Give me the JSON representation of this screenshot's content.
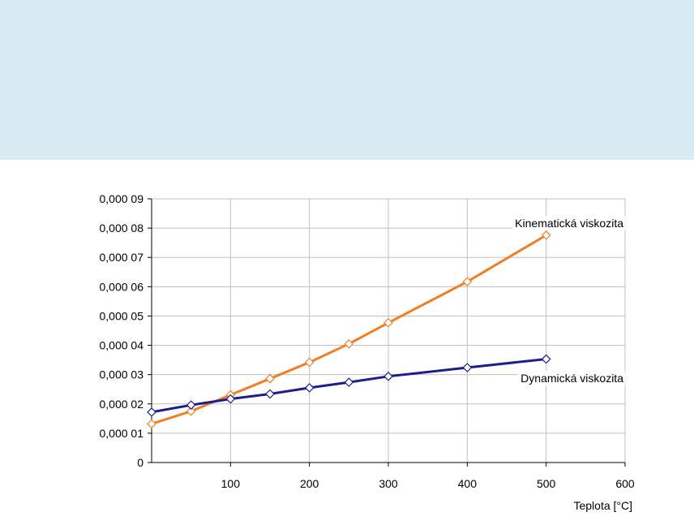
{
  "colors": {
    "header_band": "#d9ecf3",
    "grid": "#c0c0c0",
    "axis": "#000000"
  },
  "chart_data": {
    "type": "line",
    "title": "",
    "xlabel": "Teplota [°C]",
    "ylabel": "",
    "xlim": [
      0,
      600
    ],
    "ylim": [
      0,
      9e-05
    ],
    "grid": true,
    "x_ticks": [
      {
        "value": 100,
        "label": "100"
      },
      {
        "value": 200,
        "label": "200"
      },
      {
        "value": 300,
        "label": "300"
      },
      {
        "value": 400,
        "label": "400"
      },
      {
        "value": 500,
        "label": "500"
      },
      {
        "value": 600,
        "label": "600"
      }
    ],
    "y_ticks": [
      {
        "value": 0,
        "label": "0"
      },
      {
        "value": 1e-05,
        "label": "0,000 01"
      },
      {
        "value": 2e-05,
        "label": "0,000 02"
      },
      {
        "value": 3e-05,
        "label": "0,000 03"
      },
      {
        "value": 4e-05,
        "label": "0,000 04"
      },
      {
        "value": 5e-05,
        "label": "0,000 05"
      },
      {
        "value": 6e-05,
        "label": "0,000 06"
      },
      {
        "value": 7e-05,
        "label": "0,000 07"
      },
      {
        "value": 8e-05,
        "label": "0,000 08"
      },
      {
        "value": 9e-05,
        "label": "0,000 09"
      }
    ],
    "series": [
      {
        "name": "Kinematická viskozita",
        "color": "#f07e26",
        "x": [
          0,
          50,
          100,
          150,
          200,
          250,
          300,
          400,
          500
        ],
        "y": [
          1.32e-05,
          1.75e-05,
          2.31e-05,
          2.86e-05,
          3.42e-05,
          4.05e-05,
          4.77e-05,
          6.17e-05,
          7.76e-05
        ]
      },
      {
        "name": "Dynamická viskozita",
        "color": "#1a1f8a",
        "x": [
          0,
          50,
          100,
          150,
          200,
          250,
          300,
          400,
          500
        ],
        "y": [
          1.72e-05,
          1.96e-05,
          2.17e-05,
          2.34e-05,
          2.55e-05,
          2.74e-05,
          2.94e-05,
          3.24e-05,
          3.53e-05
        ]
      }
    ]
  }
}
